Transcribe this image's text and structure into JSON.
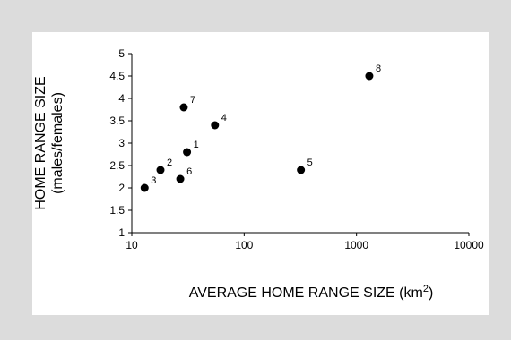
{
  "chart_data": {
    "type": "scatter",
    "title": "",
    "xlabel": "AVERAGE HOME RANGE SIZE (km",
    "xlabel_superscript": "2",
    "xlabel_suffix": ")",
    "ylabel_line1": "HOME RANGE SIZE",
    "ylabel_line2": "(males/females)",
    "x_scale": "log",
    "xlim": [
      10,
      10000
    ],
    "ylim": [
      1,
      5
    ],
    "x_ticks": [
      {
        "value": 10,
        "label": "10"
      },
      {
        "value": 100,
        "label": "100"
      },
      {
        "value": 1000,
        "label": "1000"
      },
      {
        "value": 10000,
        "label": "10000"
      }
    ],
    "y_ticks": [
      {
        "value": 1,
        "label": "1"
      },
      {
        "value": 1.5,
        "label": "1.5"
      },
      {
        "value": 2,
        "label": "2"
      },
      {
        "value": 2.5,
        "label": "2.5"
      },
      {
        "value": 3,
        "label": "3"
      },
      {
        "value": 3.5,
        "label": "3.5"
      },
      {
        "value": 4,
        "label": "4"
      },
      {
        "value": 4.5,
        "label": "4.5"
      },
      {
        "value": 5,
        "label": "5"
      }
    ],
    "grid": false,
    "points": [
      {
        "label": "1",
        "x": 31,
        "y": 2.8
      },
      {
        "label": "2",
        "x": 18,
        "y": 2.4
      },
      {
        "label": "3",
        "x": 13,
        "y": 2.0
      },
      {
        "label": "4",
        "x": 55,
        "y": 3.4
      },
      {
        "label": "5",
        "x": 320,
        "y": 2.4
      },
      {
        "label": "6",
        "x": 27,
        "y": 2.2
      },
      {
        "label": "7",
        "x": 29,
        "y": 3.8
      },
      {
        "label": "8",
        "x": 1300,
        "y": 4.5
      }
    ],
    "marker_color": "#000000"
  }
}
